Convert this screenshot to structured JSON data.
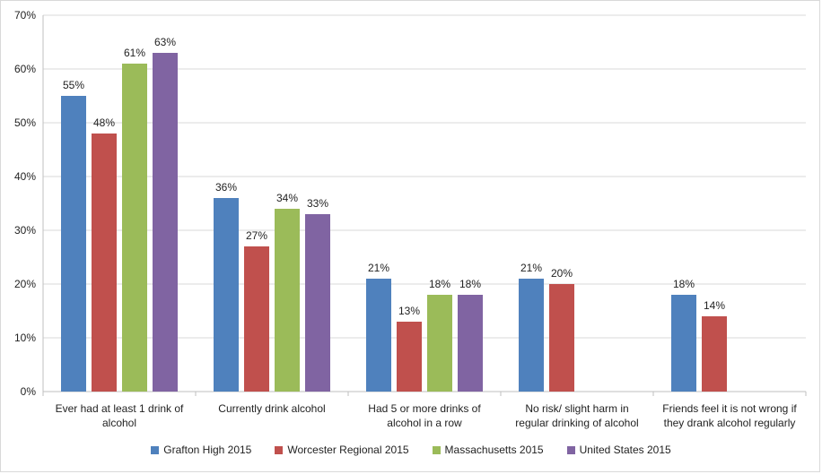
{
  "chart_data": {
    "type": "bar",
    "categories": [
      [
        "Ever had at least 1 drink of",
        "alcohol"
      ],
      [
        "Currently drink alcohol"
      ],
      [
        "Had 5 or more drinks of",
        "alcohol in a row"
      ],
      [
        "No risk/ slight harm in",
        "regular drinking of alcohol"
      ],
      [
        "Friends feel it is not wrong if",
        "they drank alcohol regularly"
      ]
    ],
    "series": [
      {
        "name": "Grafton High 2015",
        "color": "#4f81bd",
        "values": [
          55,
          36,
          21,
          21,
          18
        ],
        "labels": [
          "55%",
          "36%",
          "21%",
          "21%",
          "18%"
        ]
      },
      {
        "name": "Worcester Regional 2015",
        "color": "#c0504d",
        "values": [
          48,
          27,
          13,
          20,
          14
        ],
        "labels": [
          "48%",
          "27%",
          "13%",
          "20%",
          "14%"
        ]
      },
      {
        "name": "Massachusetts 2015",
        "color": "#9bbb59",
        "values": [
          61,
          34,
          18,
          null,
          null
        ],
        "labels": [
          "61%",
          "34%",
          "18%",
          "",
          ""
        ]
      },
      {
        "name": "United States 2015",
        "color": "#8064a2",
        "values": [
          63,
          33,
          18,
          null,
          null
        ],
        "labels": [
          "63%",
          "33%",
          "18%",
          "",
          ""
        ]
      }
    ],
    "ylim": [
      0,
      70
    ],
    "yticks": [
      "0%",
      "10%",
      "20%",
      "30%",
      "40%",
      "50%",
      "60%",
      "70%"
    ],
    "grid": true,
    "legend_position": "bottom"
  }
}
